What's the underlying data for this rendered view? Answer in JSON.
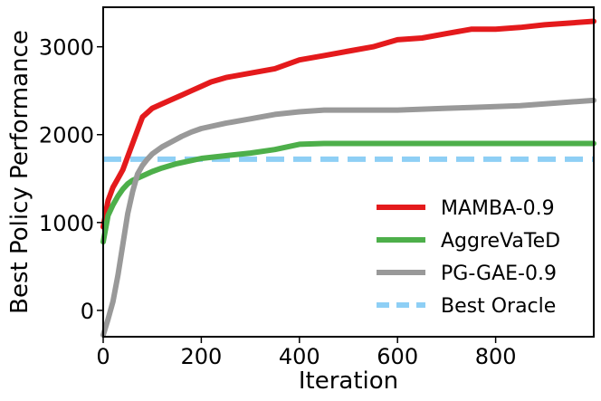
{
  "chart_data": {
    "type": "line",
    "title": "",
    "xlabel": "Iteration",
    "ylabel": "Best Policy Performance",
    "xlim": [
      0,
      1000
    ],
    "ylim": [
      -300,
      3450
    ],
    "xticks": [
      0,
      200,
      400,
      600,
      800
    ],
    "yticks": [
      0,
      1000,
      2000,
      3000
    ],
    "grid": false,
    "legend_position": "lower-right",
    "series": [
      {
        "name": "MAMBA-0.9",
        "color": "#e41a1c",
        "style": "solid",
        "x": [
          0,
          10,
          20,
          30,
          40,
          50,
          60,
          70,
          80,
          90,
          100,
          120,
          140,
          160,
          180,
          200,
          220,
          250,
          300,
          350,
          400,
          450,
          500,
          550,
          600,
          650,
          700,
          750,
          800,
          850,
          900,
          950,
          1000
        ],
        "y": [
          950,
          1250,
          1400,
          1500,
          1600,
          1750,
          1900,
          2050,
          2200,
          2250,
          2300,
          2350,
          2400,
          2450,
          2500,
          2550,
          2600,
          2650,
          2700,
          2750,
          2850,
          2900,
          2950,
          3000,
          3080,
          3100,
          3150,
          3200,
          3200,
          3220,
          3250,
          3270,
          3290
        ]
      },
      {
        "name": "AggreVaTeD",
        "color": "#4daf4a",
        "style": "solid",
        "x": [
          0,
          10,
          20,
          30,
          40,
          50,
          60,
          80,
          100,
          120,
          150,
          200,
          250,
          300,
          350,
          400,
          450,
          500,
          600,
          700,
          800,
          900,
          1000
        ],
        "y": [
          780,
          1080,
          1200,
          1300,
          1380,
          1440,
          1480,
          1530,
          1580,
          1620,
          1670,
          1730,
          1760,
          1790,
          1830,
          1890,
          1900,
          1900,
          1900,
          1900,
          1900,
          1900,
          1900
        ]
      },
      {
        "name": "PG-GAE-0.9",
        "color": "#999999",
        "style": "solid",
        "x": [
          0,
          10,
          20,
          30,
          40,
          50,
          60,
          70,
          80,
          90,
          100,
          120,
          140,
          160,
          180,
          200,
          250,
          300,
          350,
          400,
          450,
          500,
          550,
          600,
          650,
          700,
          750,
          800,
          850,
          900,
          950,
          1000
        ],
        "y": [
          -280,
          -100,
          100,
          400,
          750,
          1100,
          1350,
          1550,
          1650,
          1720,
          1780,
          1860,
          1920,
          1980,
          2030,
          2070,
          2130,
          2180,
          2230,
          2260,
          2280,
          2280,
          2280,
          2280,
          2290,
          2300,
          2310,
          2320,
          2330,
          2350,
          2370,
          2390
        ]
      },
      {
        "name": "Best Oracle",
        "color": "#8ecff5",
        "style": "dashed",
        "x": [
          0,
          1000
        ],
        "y": [
          1720,
          1720
        ]
      }
    ]
  }
}
